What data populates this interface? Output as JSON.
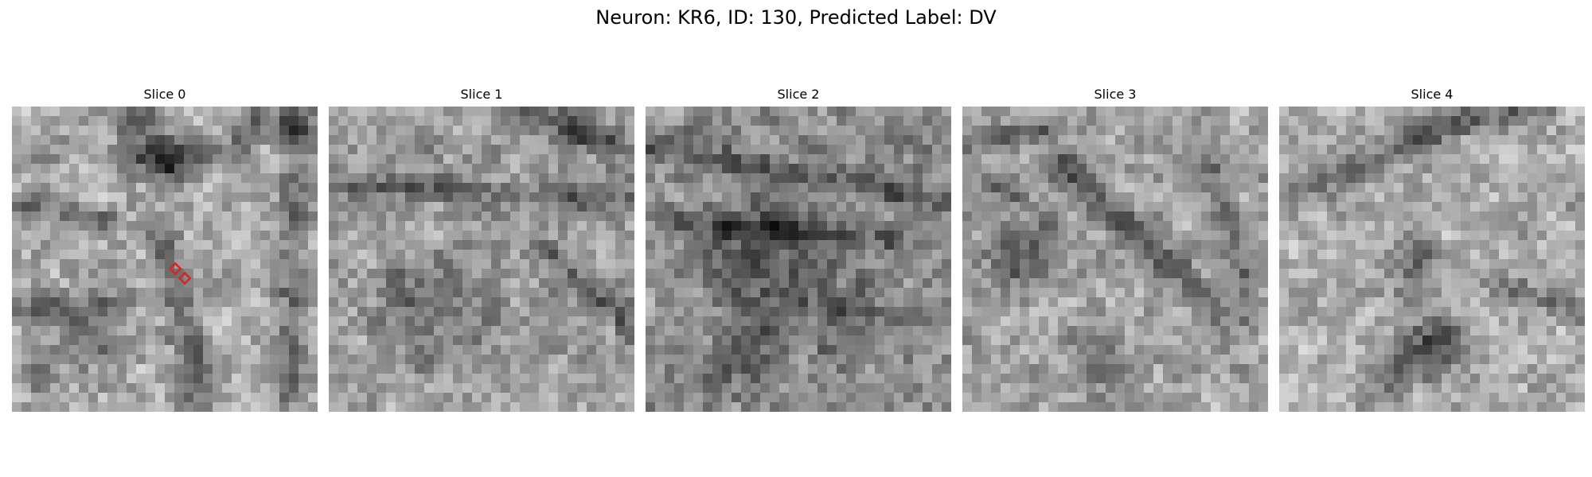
{
  "figure": {
    "title": "Neuron: KR6, ID: 130, Predicted Label: DV"
  },
  "panels": [
    {
      "title": "Slice 0",
      "has_markers": true
    },
    {
      "title": "Slice 1",
      "has_markers": false
    },
    {
      "title": "Slice 2",
      "has_markers": false
    },
    {
      "title": "Slice 3",
      "has_markers": false
    },
    {
      "title": "Slice 4",
      "has_markers": false
    }
  ],
  "image": {
    "colormap": "grayscale",
    "grid": "32x32 pixel patch"
  },
  "markers": {
    "shape": "diamond",
    "color": "#d62728"
  }
}
